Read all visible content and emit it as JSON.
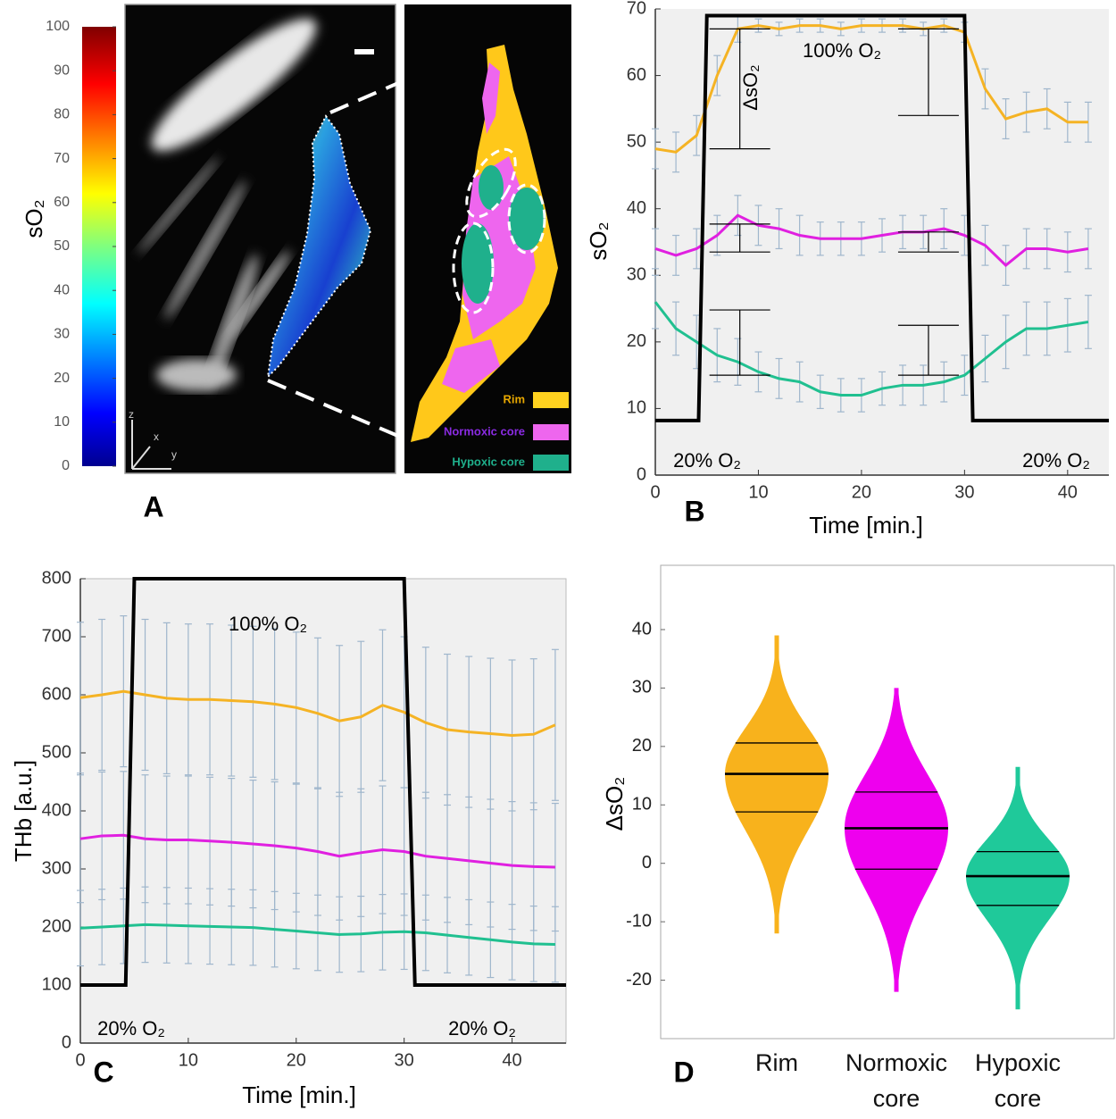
{
  "chart_data": [
    {
      "type": "image",
      "panel": "A",
      "colorbar": {
        "label": "sO₂",
        "ylim": [
          0,
          100
        ],
        "yticks": [
          0,
          10,
          20,
          30,
          40,
          50,
          60,
          70,
          80,
          90,
          100
        ]
      },
      "legend": [
        {
          "name": "Rim",
          "color": "#ffd21f",
          "text_color": "#e8a800"
        },
        {
          "name": "Normoxic core",
          "color": "#ee66ee",
          "text_color": "#8a2be2"
        },
        {
          "name": "Hypoxic core",
          "color": "#1fb08c",
          "text_color": "#1fb08c"
        }
      ],
      "axis_labels": [
        "z",
        "x",
        "y"
      ]
    },
    {
      "type": "line",
      "panel": "B",
      "xlabel": "Time [min.]",
      "ylabel": "sO₂",
      "xlim": [
        0,
        44
      ],
      "xticks": [
        0,
        10,
        20,
        30,
        40
      ],
      "ylim": [
        0,
        70
      ],
      "yticks": [
        0,
        10,
        20,
        30,
        40,
        50,
        60,
        70
      ],
      "series": [
        {
          "color": "#f5b324",
          "x": [
            0,
            2,
            4,
            6,
            8,
            10,
            12,
            14,
            16,
            18,
            20,
            22,
            24,
            26,
            28,
            30,
            32,
            34,
            36,
            38,
            40,
            42
          ],
          "values": [
            49,
            48.5,
            51,
            60,
            67,
            67.5,
            67,
            67.5,
            67.5,
            67,
            67.5,
            67.5,
            67.5,
            67,
            67.5,
            66.5,
            58,
            53.5,
            54.5,
            55,
            53,
            53
          ],
          "errors": [
            3,
            3,
            3,
            3,
            2,
            1,
            1,
            1,
            1,
            1,
            1,
            1,
            1,
            1,
            1,
            1.5,
            3,
            3,
            3,
            3,
            3,
            3
          ]
        },
        {
          "color": "#e020e0",
          "x": [
            0,
            2,
            4,
            6,
            8,
            10,
            12,
            14,
            16,
            18,
            20,
            22,
            24,
            26,
            28,
            30,
            32,
            34,
            36,
            38,
            40,
            42
          ],
          "values": [
            34,
            33,
            34,
            36,
            39,
            37.5,
            37,
            36,
            35.5,
            35.5,
            35.5,
            36,
            36.5,
            36.5,
            37,
            36,
            34.5,
            31.5,
            34,
            34,
            33.5,
            34
          ],
          "errors": [
            3,
            3,
            3,
            3,
            3,
            3,
            3,
            3,
            2.5,
            2.5,
            2.5,
            2.5,
            2.5,
            2.5,
            3,
            3,
            3,
            3,
            3,
            3,
            3,
            3
          ]
        },
        {
          "color": "#20c090",
          "x": [
            0,
            2,
            4,
            6,
            8,
            10,
            12,
            14,
            16,
            18,
            20,
            22,
            24,
            26,
            28,
            30,
            32,
            34,
            36,
            38,
            40,
            42
          ],
          "values": [
            26,
            22,
            20,
            18,
            17,
            15.5,
            14.5,
            14,
            12.5,
            12,
            12,
            13,
            13.5,
            13.5,
            14,
            15,
            17.5,
            20,
            22,
            22,
            22.5,
            23
          ],
          "errors": [
            4,
            4,
            4,
            4,
            3.5,
            3,
            3,
            3,
            2.5,
            2.5,
            2.5,
            2.5,
            3,
            3,
            3,
            3,
            3.5,
            4,
            4,
            4,
            4,
            4
          ]
        },
        {
          "color": "#000000",
          "x": [
            0,
            4.2,
            5,
            30,
            30.8,
            44
          ],
          "values": [
            8.2,
            8.2,
            69,
            69,
            8.2,
            8.2
          ]
        }
      ],
      "brackets": [
        {
          "x": 8.2,
          "y": [
            49,
            67
          ]
        },
        {
          "x": 26.5,
          "y": [
            54,
            67
          ]
        },
        {
          "x": 8.2,
          "y": [
            33.5,
            37.7
          ]
        },
        {
          "x": 26.5,
          "y": [
            33.5,
            36.5
          ]
        },
        {
          "x": 8.2,
          "y": [
            15,
            24.8
          ]
        },
        {
          "x": 26.5,
          "y": [
            15,
            22.5
          ]
        }
      ],
      "annotations": [
        "100% O₂",
        "ΔsO₂",
        "20% O₂",
        "20% O₂"
      ]
    },
    {
      "type": "line",
      "panel": "C",
      "xlabel": "Time [min.]",
      "ylabel": "THb [a.u.]",
      "xlim": [
        0,
        45
      ],
      "xticks": [
        0,
        10,
        20,
        30,
        40
      ],
      "ylim": [
        0,
        800
      ],
      "yticks": [
        0,
        100,
        200,
        300,
        400,
        500,
        600,
        700,
        800
      ],
      "series": [
        {
          "color": "#f5b324",
          "x": [
            0,
            2,
            4,
            6,
            8,
            10,
            12,
            14,
            16,
            18,
            20,
            22,
            24,
            26,
            28,
            30,
            32,
            34,
            36,
            38,
            40,
            42,
            44
          ],
          "values": [
            595,
            600,
            606,
            600,
            594,
            592,
            592,
            590,
            588,
            584,
            578,
            568,
            555,
            562,
            582,
            570,
            552,
            540,
            536,
            533,
            530,
            532,
            548
          ],
          "errors": [
            130,
            130,
            130,
            130,
            130,
            130,
            130,
            130,
            130,
            130,
            130,
            130,
            130,
            130,
            130,
            130,
            130,
            130,
            130,
            130,
            130,
            130,
            130
          ]
        },
        {
          "color": "#e020e0",
          "x": [
            0,
            2,
            4,
            6,
            8,
            10,
            12,
            14,
            16,
            18,
            20,
            22,
            24,
            26,
            28,
            30,
            32,
            34,
            36,
            38,
            40,
            42,
            44
          ],
          "values": [
            352,
            357,
            358,
            352,
            350,
            350,
            348,
            346,
            343,
            340,
            336,
            330,
            322,
            328,
            333,
            330,
            322,
            318,
            314,
            310,
            306,
            304,
            303
          ],
          "errors": [
            110,
            110,
            110,
            110,
            110,
            110,
            110,
            110,
            110,
            110,
            110,
            110,
            110,
            110,
            110,
            110,
            110,
            110,
            110,
            110,
            110,
            110,
            110
          ]
        },
        {
          "color": "#20c090",
          "x": [
            0,
            2,
            4,
            6,
            8,
            10,
            12,
            14,
            16,
            18,
            20,
            22,
            24,
            26,
            28,
            30,
            32,
            34,
            36,
            38,
            40,
            42,
            44
          ],
          "values": [
            198,
            200,
            202,
            204,
            203,
            202,
            201,
            200,
            199,
            196,
            193,
            190,
            187,
            188,
            191,
            192,
            190,
            186,
            182,
            178,
            174,
            171,
            170
          ],
          "errors": [
            65,
            65,
            65,
            65,
            65,
            65,
            65,
            65,
            65,
            65,
            65,
            65,
            65,
            65,
            65,
            65,
            65,
            65,
            65,
            65,
            65,
            65,
            65
          ]
        },
        {
          "color": "#000000",
          "x": [
            0,
            4.2,
            5,
            30,
            31,
            45
          ],
          "values": [
            100,
            100,
            800,
            800,
            100,
            100
          ]
        }
      ],
      "annotations": [
        "100% O₂",
        "20% O₂",
        "20% O₂"
      ]
    },
    {
      "type": "violin",
      "panel": "D",
      "ylabel": "ΔsO₂",
      "categories": [
        "Rim",
        "Normoxic core",
        "Hypoxic core"
      ],
      "colors": [
        "#f8b21c",
        "#ee00ee",
        "#1fc99a"
      ],
      "medians": [
        15.3,
        6,
        -2.2
      ],
      "q1": [
        8.8,
        -1,
        -7.2
      ],
      "q3": [
        20.6,
        12.2,
        2
      ],
      "mins": [
        -12,
        -22,
        -25
      ],
      "maxs": [
        39,
        30,
        16.5
      ],
      "ylim": [
        -30,
        51
      ],
      "yticks": [
        -20,
        -10,
        0,
        10,
        20,
        30,
        40
      ]
    }
  ]
}
